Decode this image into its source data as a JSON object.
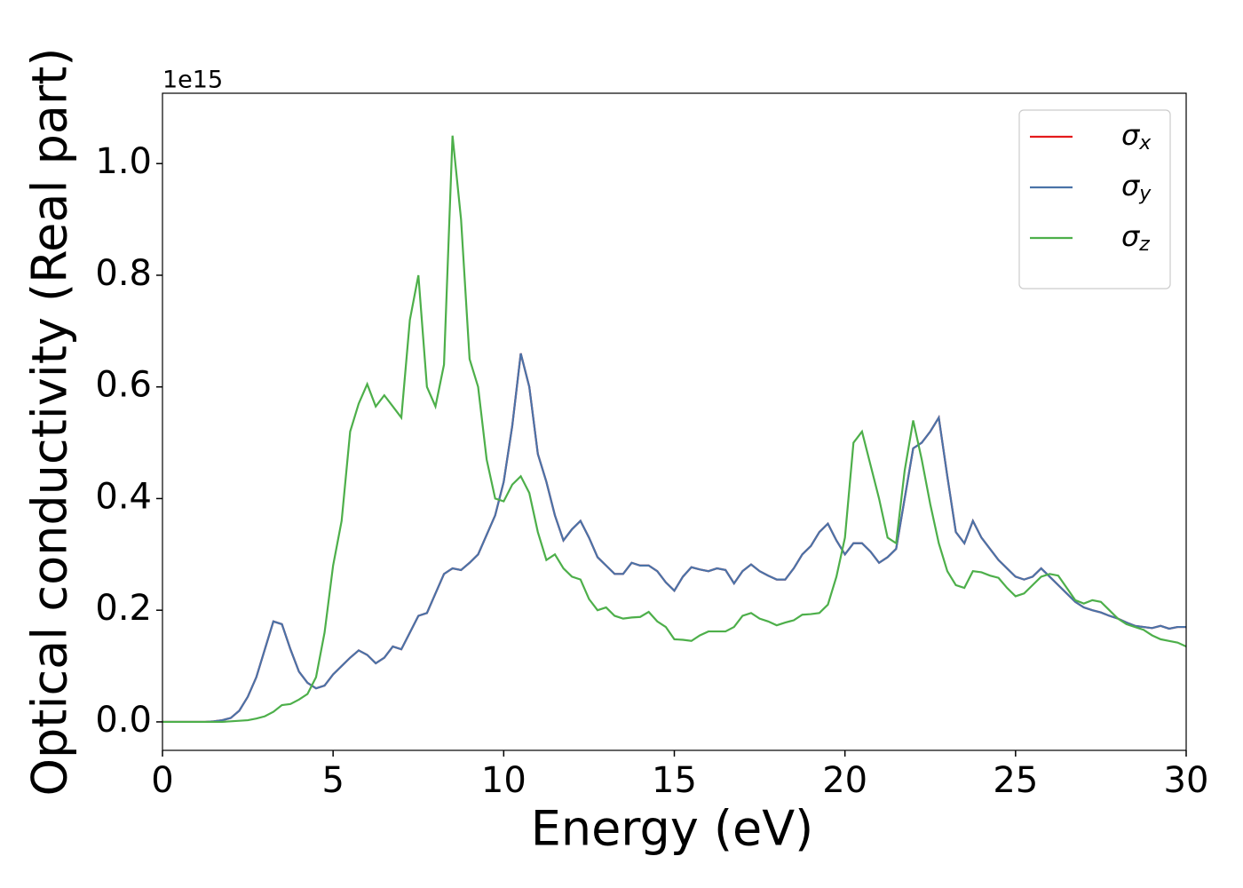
{
  "chart_data": {
    "type": "line",
    "xlabel": "Energy (eV)",
    "ylabel": "Optical conductivity (Real part)",
    "y_offset_text": "1e15",
    "xlim": [
      0,
      30
    ],
    "xticks": [
      0,
      5,
      10,
      15,
      20,
      25,
      30
    ],
    "ylim": [
      -0.051,
      1.126
    ],
    "yticks": [
      {
        "value": 0,
        "label": "0.0"
      },
      0.2,
      0.4,
      0.6,
      0.8,
      {
        "value": 1,
        "label": "1.0"
      }
    ],
    "legend": "upper right",
    "x": [
      0,
      0.25,
      0.5,
      0.75,
      1,
      1.25,
      1.5,
      1.75,
      2,
      2.25,
      2.5,
      2.75,
      3,
      3.25,
      3.5,
      3.75,
      4,
      4.25,
      4.5,
      4.75,
      5,
      5.25,
      5.5,
      5.75,
      6,
      6.25,
      6.5,
      6.75,
      7,
      7.25,
      7.5,
      7.75,
      8,
      8.25,
      8.5,
      8.75,
      9,
      9.25,
      9.5,
      9.75,
      10,
      10.25,
      10.5,
      10.75,
      11,
      11.25,
      11.5,
      11.75,
      12,
      12.25,
      12.5,
      12.75,
      13,
      13.25,
      13.5,
      13.75,
      14,
      14.25,
      14.5,
      14.75,
      15,
      15.25,
      15.5,
      15.75,
      16,
      16.25,
      16.5,
      16.75,
      17,
      17.25,
      17.5,
      17.75,
      18,
      18.25,
      18.5,
      18.75,
      19,
      19.25,
      19.5,
      19.75,
      20,
      20.25,
      20.5,
      20.75,
      21,
      21.25,
      21.5,
      21.75,
      22,
      22.25,
      22.5,
      22.75,
      23,
      23.25,
      23.5,
      23.75,
      24,
      24.25,
      24.5,
      24.75,
      25,
      25.25,
      25.5,
      25.75,
      26,
      26.25,
      26.5,
      26.75,
      27,
      27.25,
      27.5,
      27.75,
      28,
      28.25,
      28.5,
      28.75,
      29,
      29.25,
      29.5,
      29.75,
      30
    ],
    "series": [
      {
        "name": "σx",
        "color": "#e41a1c",
        "values": [
          0,
          0,
          0,
          0,
          0,
          0,
          0.001,
          0.003,
          0.007,
          0.02,
          0.045,
          0.08,
          0.13,
          0.18,
          0.175,
          0.13,
          0.09,
          0.07,
          0.06,
          0.065,
          0.085,
          0.1,
          0.115,
          0.128,
          0.12,
          0.105,
          0.115,
          0.135,
          0.13,
          0.16,
          0.19,
          0.195,
          0.23,
          0.265,
          0.275,
          0.272,
          0.285,
          0.3,
          0.335,
          0.37,
          0.43,
          0.53,
          0.66,
          0.6,
          0.48,
          0.43,
          0.37,
          0.325,
          0.345,
          0.36,
          0.33,
          0.295,
          0.28,
          0.265,
          0.265,
          0.285,
          0.28,
          0.28,
          0.27,
          0.25,
          0.235,
          0.26,
          0.277,
          0.273,
          0.27,
          0.275,
          0.272,
          0.248,
          0.27,
          0.282,
          0.27,
          0.262,
          0.255,
          0.255,
          0.275,
          0.3,
          0.315,
          0.34,
          0.355,
          0.325,
          0.3,
          0.32,
          0.32,
          0.305,
          0.285,
          0.295,
          0.31,
          0.4,
          0.49,
          0.5,
          0.52,
          0.545,
          0.44,
          0.34,
          0.32,
          0.36,
          0.33,
          0.31,
          0.29,
          0.275,
          0.26,
          0.255,
          0.26,
          0.275,
          0.26,
          0.245,
          0.23,
          0.215,
          0.205,
          0.2,
          0.196,
          0.19,
          0.185,
          0.178,
          0.172,
          0.17,
          0.168,
          0.172,
          0.167,
          0.17,
          0.17
        ]
      },
      {
        "name": "σy",
        "color": "#4a73a8",
        "values": [
          0,
          0,
          0,
          0,
          0,
          0,
          0.001,
          0.003,
          0.007,
          0.02,
          0.045,
          0.08,
          0.13,
          0.18,
          0.175,
          0.13,
          0.09,
          0.07,
          0.06,
          0.065,
          0.085,
          0.1,
          0.115,
          0.128,
          0.12,
          0.105,
          0.115,
          0.135,
          0.13,
          0.16,
          0.19,
          0.195,
          0.23,
          0.265,
          0.275,
          0.272,
          0.285,
          0.3,
          0.335,
          0.37,
          0.43,
          0.53,
          0.66,
          0.6,
          0.48,
          0.43,
          0.37,
          0.325,
          0.345,
          0.36,
          0.33,
          0.295,
          0.28,
          0.265,
          0.265,
          0.285,
          0.28,
          0.28,
          0.27,
          0.25,
          0.235,
          0.26,
          0.277,
          0.273,
          0.27,
          0.275,
          0.272,
          0.248,
          0.27,
          0.282,
          0.27,
          0.262,
          0.255,
          0.255,
          0.275,
          0.3,
          0.315,
          0.34,
          0.355,
          0.325,
          0.3,
          0.32,
          0.32,
          0.305,
          0.285,
          0.295,
          0.31,
          0.4,
          0.49,
          0.5,
          0.52,
          0.545,
          0.44,
          0.34,
          0.32,
          0.36,
          0.33,
          0.31,
          0.29,
          0.275,
          0.26,
          0.255,
          0.26,
          0.275,
          0.26,
          0.245,
          0.23,
          0.215,
          0.205,
          0.2,
          0.196,
          0.19,
          0.185,
          0.178,
          0.172,
          0.17,
          0.168,
          0.172,
          0.167,
          0.17,
          0.17
        ]
      },
      {
        "name": "σz",
        "color": "#4daf4a",
        "values": [
          0,
          0,
          0,
          0,
          0,
          0,
          0,
          0,
          0.001,
          0.002,
          0.003,
          0.006,
          0.01,
          0.018,
          0.03,
          0.032,
          0.04,
          0.05,
          0.08,
          0.16,
          0.28,
          0.36,
          0.52,
          0.57,
          0.605,
          0.565,
          0.585,
          0.565,
          0.545,
          0.72,
          0.8,
          0.6,
          0.565,
          0.64,
          1.05,
          0.9,
          0.65,
          0.6,
          0.47,
          0.4,
          0.395,
          0.425,
          0.44,
          0.41,
          0.34,
          0.29,
          0.3,
          0.275,
          0.26,
          0.255,
          0.22,
          0.2,
          0.205,
          0.19,
          0.185,
          0.187,
          0.188,
          0.197,
          0.18,
          0.17,
          0.148,
          0.147,
          0.145,
          0.155,
          0.162,
          0.162,
          0.162,
          0.17,
          0.19,
          0.195,
          0.185,
          0.18,
          0.173,
          0.178,
          0.182,
          0.192,
          0.193,
          0.195,
          0.21,
          0.26,
          0.33,
          0.5,
          0.52,
          0.46,
          0.4,
          0.33,
          0.32,
          0.45,
          0.54,
          0.47,
          0.39,
          0.32,
          0.27,
          0.245,
          0.24,
          0.27,
          0.268,
          0.262,
          0.258,
          0.24,
          0.225,
          0.23,
          0.245,
          0.26,
          0.265,
          0.262,
          0.24,
          0.218,
          0.212,
          0.218,
          0.215,
          0.2,
          0.185,
          0.175,
          0.17,
          0.165,
          0.155,
          0.148,
          0.145,
          0.142,
          0.135
        ]
      }
    ]
  }
}
